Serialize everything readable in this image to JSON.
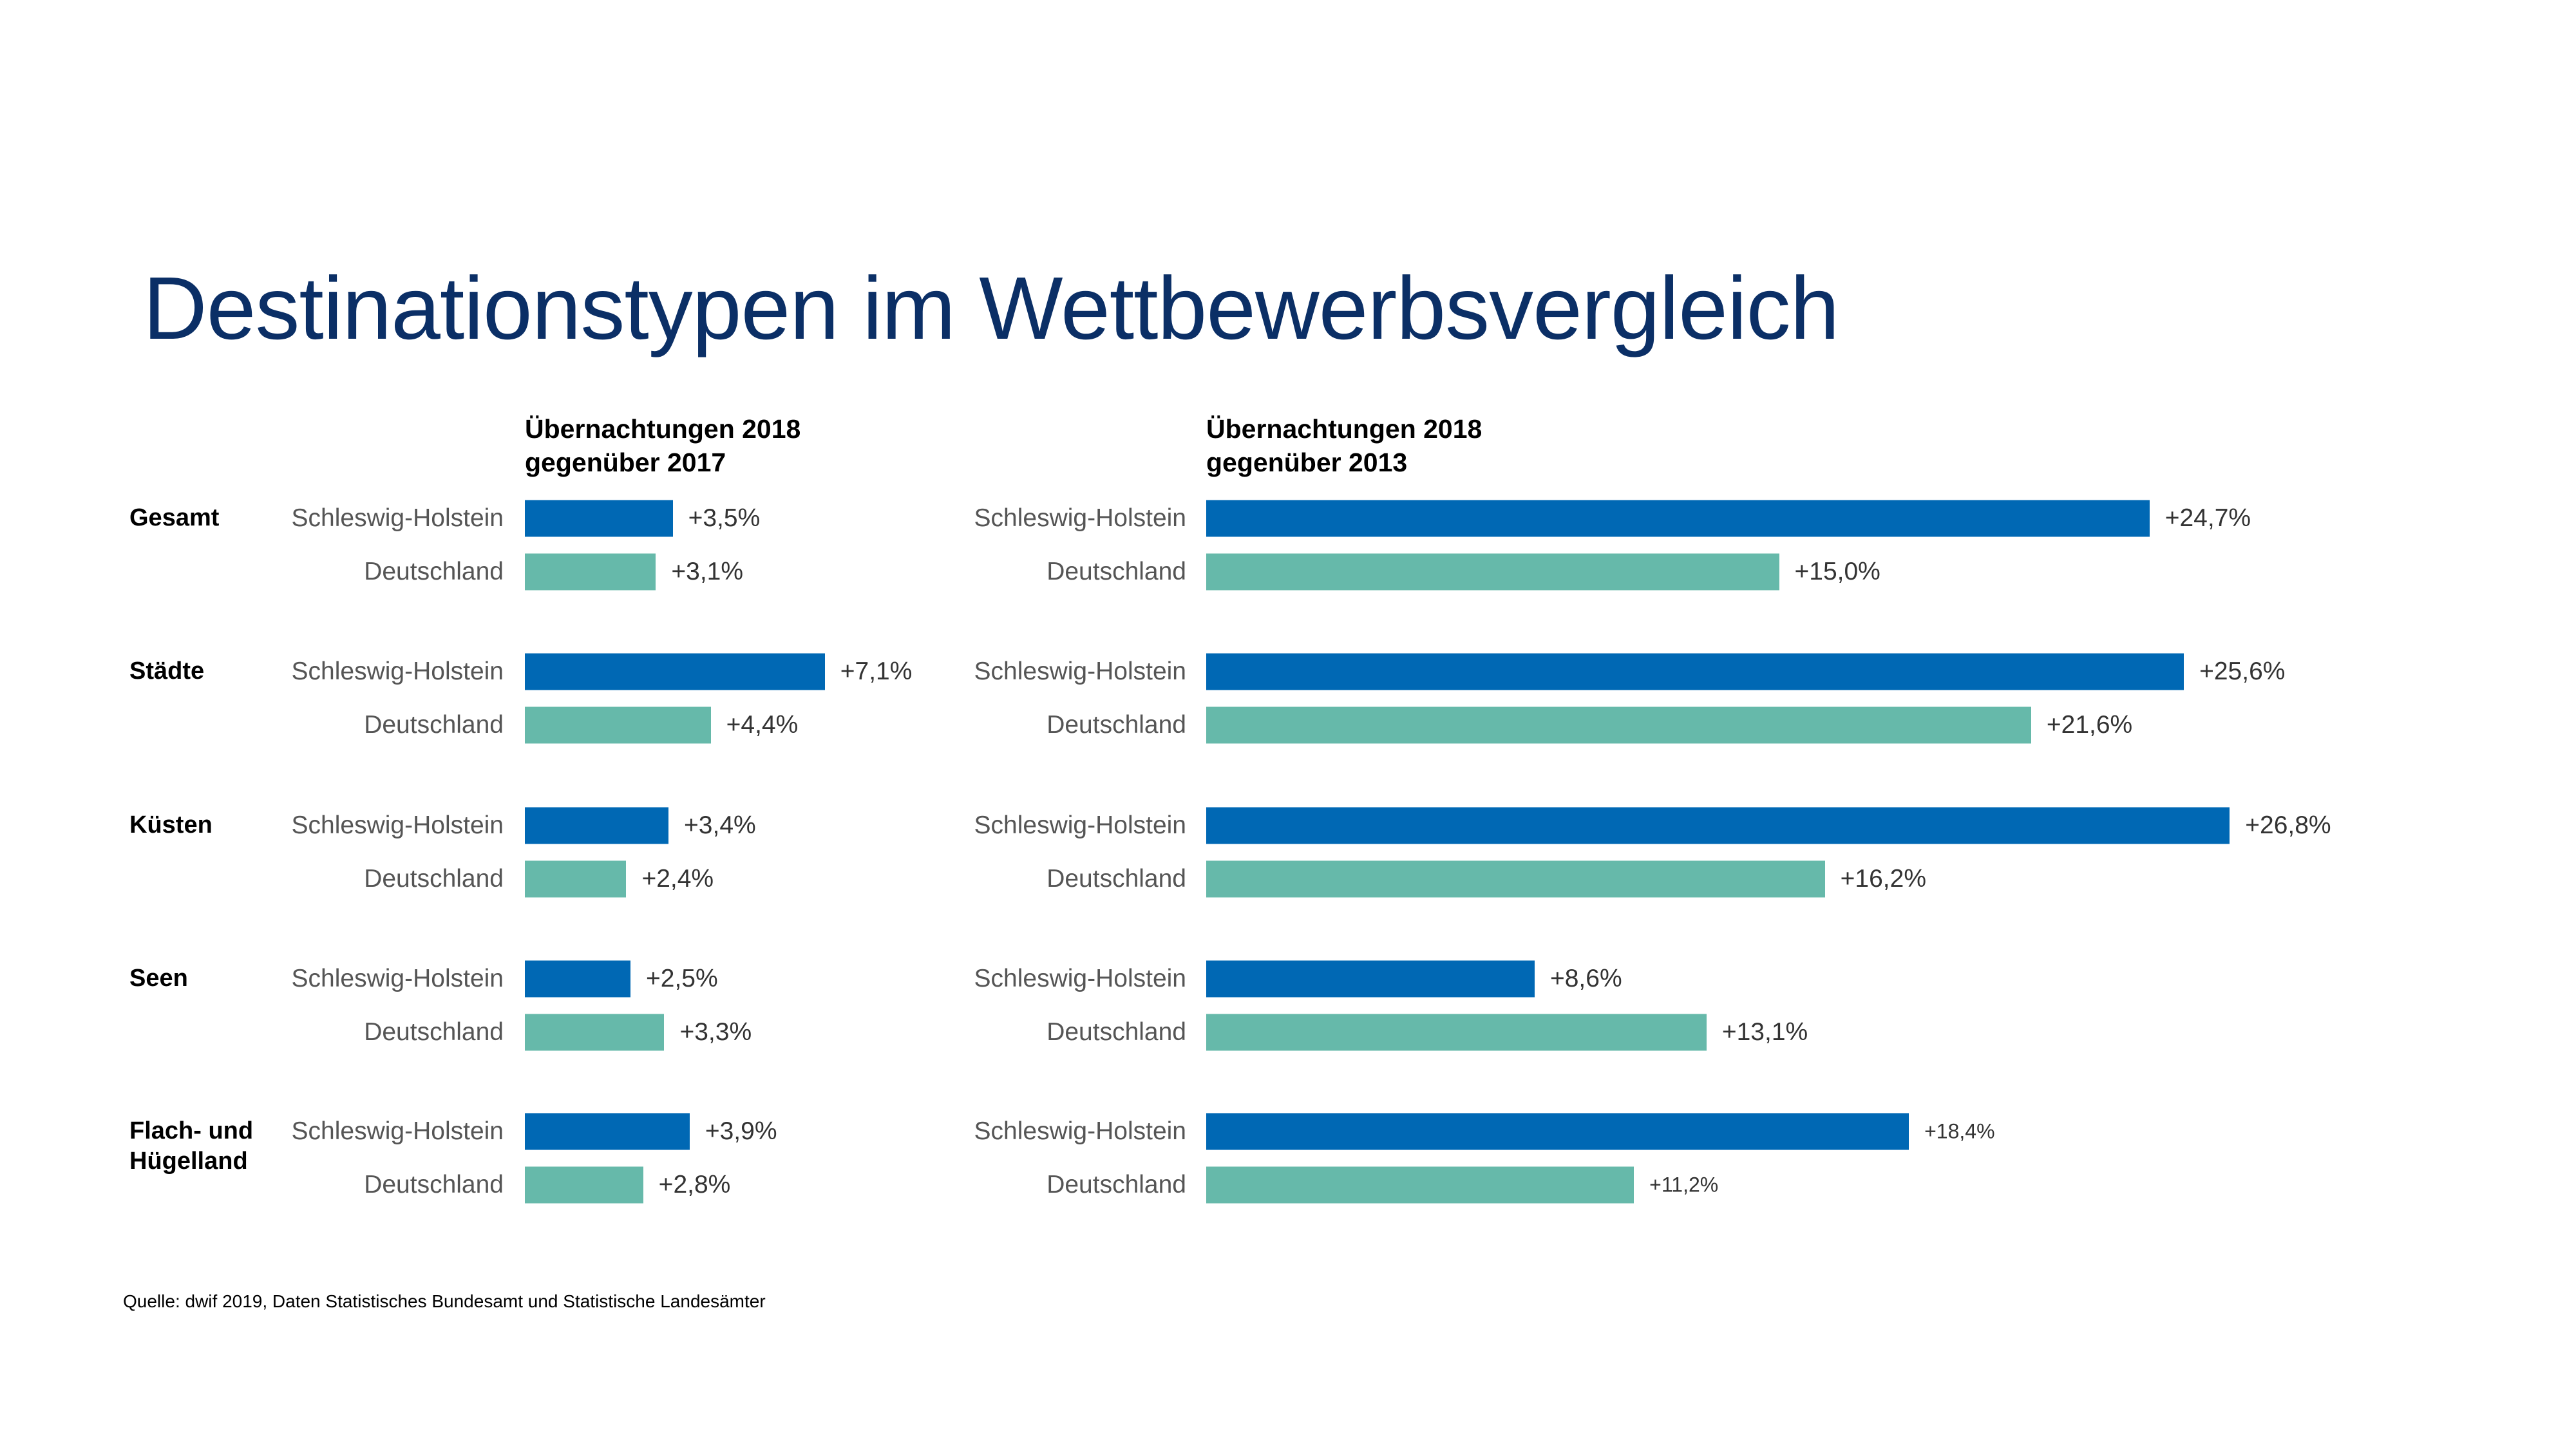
{
  "title": "Destinationstypen im Wettbewerbsvergleich",
  "source": "Quelle: dwif 2019, Daten Statistisches Bundesamt und Statistische Landesämter",
  "colors": {
    "title": "#0b2f66",
    "schleswig_holstein": "#0068b4",
    "deutschland": "#66b9aa"
  },
  "chart_data": [
    {
      "type": "bar",
      "orientation": "horizontal",
      "title": [
        "Übernachtungen 2018",
        "gegenüber 2017"
      ],
      "categories": [
        "Gesamt",
        "Städte",
        "Küsten",
        "Seen",
        "Flach- und Hügelland"
      ],
      "series": [
        {
          "name": "Schleswig-Holstein",
          "values": [
            3.5,
            7.1,
            3.4,
            2.5,
            3.9
          ],
          "labels": [
            "+3,5%",
            "+7,1%",
            "+3,4%",
            "+2,5%",
            "+3,9%"
          ]
        },
        {
          "name": "Deutschland",
          "values": [
            3.1,
            4.4,
            2.4,
            3.3,
            2.8
          ],
          "labels": [
            "+3,1%",
            "+4,4%",
            "+2,4%",
            "+3,3%",
            "+2,8%"
          ]
        }
      ]
    },
    {
      "type": "bar",
      "orientation": "horizontal",
      "title": [
        "Übernachtungen 2018",
        "gegenüber 2013"
      ],
      "categories": [
        "Gesamt",
        "Städte",
        "Küsten",
        "Seen",
        "Flach- und Hügelland"
      ],
      "series": [
        {
          "name": "Schleswig-Holstein",
          "values": [
            24.7,
            25.6,
            26.8,
            8.6,
            18.4
          ],
          "labels": [
            "+24,7%",
            "+25,6%",
            "+26,8%",
            "+8,6%",
            "+18,4%"
          ]
        },
        {
          "name": "Deutschland",
          "values": [
            15.0,
            21.6,
            16.2,
            13.1,
            11.2
          ],
          "labels": [
            "+15,0%",
            "+21,6%",
            "+16,2%",
            "+13,1%",
            "+11,2%"
          ]
        }
      ]
    }
  ]
}
